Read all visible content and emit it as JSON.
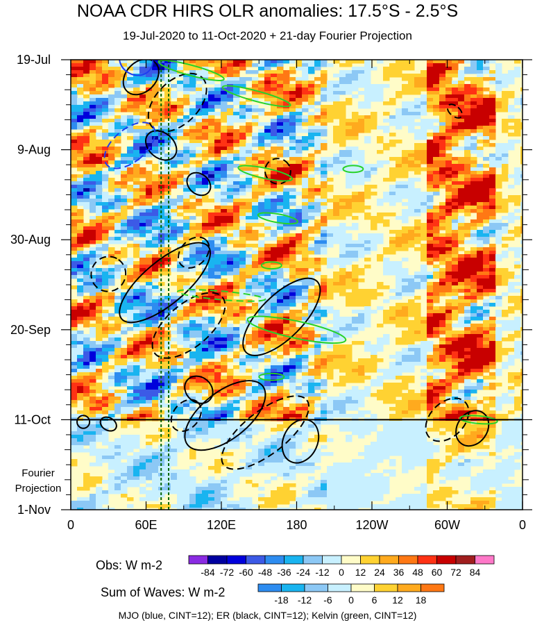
{
  "title": "NOAA CDR HIRS OLR anomalies: 17.5°S - 2.5°S",
  "subtitle": "19-Jul-2020 to 11-Oct-2020 + 21-day Fourier Projection",
  "footer": "MJO (blue, CINT=12); ER (black, CINT=12); Kelvin (green, CINT=12)",
  "colors": {
    "background_field": "#fffcc8",
    "mjo": "#1e3cf0",
    "er": "#000000",
    "kelvin": "#28d228",
    "marker_lines": "#006400"
  },
  "chart_data": {
    "type": "heatmap",
    "xlabel": "",
    "ylabel": "",
    "xlim_deg": [
      0,
      360
    ],
    "x_ticks": [
      {
        "lon": 0,
        "label": "0"
      },
      {
        "lon": 60,
        "label": "60E"
      },
      {
        "lon": 120,
        "label": "120E"
      },
      {
        "lon": 180,
        "label": "180"
      },
      {
        "lon": 240,
        "label": "120W"
      },
      {
        "lon": 300,
        "label": "60W"
      },
      {
        "lon": 360,
        "label": "0"
      }
    ],
    "y_ticks": [
      {
        "day": 0,
        "label": "19-Jul"
      },
      {
        "day": 21,
        "label": "9-Aug"
      },
      {
        "day": 42,
        "label": "30-Aug"
      },
      {
        "day": 63,
        "label": "20-Sep"
      },
      {
        "day": 84,
        "label": "11-Oct"
      },
      {
        "day": 105,
        "label": "1-Nov"
      }
    ],
    "y_range_days": [
      0,
      105
    ],
    "observation_end_day": 84,
    "fourier_projection_label": [
      "Fourier",
      "Projection"
    ],
    "reference_longitudes_deg": [
      72,
      78
    ],
    "colorbar_obs": {
      "label": "Obs: W m-2",
      "levels": [
        "-84",
        "-72",
        "-60",
        "-48",
        "-36",
        "-24",
        "-12",
        "0",
        "12",
        "24",
        "36",
        "48",
        "60",
        "72",
        "84"
      ],
      "colors": [
        "#8a2be2",
        "#0000a0",
        "#0000dc",
        "#3c5ae6",
        "#2d8cf0",
        "#19b4f0",
        "#8cc8f5",
        "#c8f0ff",
        "#fffcc8",
        "#ffd232",
        "#ffaa1e",
        "#ff7814",
        "#ff3214",
        "#c80000",
        "#a01e1e",
        "#ff78c8"
      ]
    },
    "colorbar_waves": {
      "label": "Sum of Waves: W m-2",
      "levels": [
        "-18",
        "-12",
        "-6",
        "0",
        "6",
        "12",
        "18"
      ],
      "colors": [
        "#2d8cf0",
        "#19b4f0",
        "#8cc8f5",
        "#c8f0ff",
        "#fffcc8",
        "#ffd232",
        "#ffaa1e",
        "#ff7814"
      ]
    },
    "wave_contours": {
      "mjo": [
        {
          "lon": 52,
          "day": 0,
          "rx": 12,
          "ry": 4,
          "angle": -60,
          "dashed": false
        },
        {
          "lon": 47,
          "day": 20,
          "rx": 13,
          "ry": 7,
          "angle": 50,
          "dashed": true
        }
      ],
      "er": [
        {
          "lon": 56,
          "day": 4,
          "rx": 16,
          "ry": 3.5,
          "angle": -45,
          "dashed": false
        },
        {
          "lon": 85,
          "day": 10,
          "rx": 28,
          "ry": 5,
          "angle": -45,
          "dashed": true
        },
        {
          "lon": 72,
          "day": 20,
          "rx": 10,
          "ry": 4,
          "angle": -50,
          "dashed": false
        },
        {
          "lon": 102,
          "day": 29,
          "rx": 8,
          "ry": 3,
          "angle": -50,
          "dashed": false
        },
        {
          "lon": 165,
          "day": 26,
          "rx": 10,
          "ry": 3,
          "angle": -55,
          "dashed": true
        },
        {
          "lon": 98,
          "day": 45,
          "rx": 14,
          "ry": 3,
          "angle": -45,
          "dashed": true
        },
        {
          "lon": 30,
          "day": 50,
          "rx": 14,
          "ry": 4,
          "angle": -55,
          "dashed": true
        },
        {
          "lon": 75,
          "day": 52,
          "rx": 45,
          "ry": 5,
          "angle": -40,
          "dashed": false
        },
        {
          "lon": 94,
          "day": 62,
          "rx": 35,
          "ry": 5,
          "angle": -40,
          "dashed": true
        },
        {
          "lon": 168,
          "day": 60,
          "rx": 40,
          "ry": 5,
          "angle": -45,
          "dashed": false
        },
        {
          "lon": 102,
          "day": 77,
          "rx": 10,
          "ry": 3.5,
          "angle": -50,
          "dashed": false
        },
        {
          "lon": 92,
          "day": 83,
          "rx": 14,
          "ry": 3,
          "angle": -50,
          "dashed": true
        },
        {
          "lon": 123,
          "day": 83,
          "rx": 38,
          "ry": 5.5,
          "angle": -38,
          "dashed": false
        },
        {
          "lon": 155,
          "day": 87,
          "rx": 42,
          "ry": 5,
          "angle": -38,
          "dashed": true
        },
        {
          "lon": 183,
          "day": 89,
          "rx": 18,
          "ry": 4,
          "angle": -65,
          "dashed": false
        },
        {
          "lon": 300,
          "day": 84,
          "rx": 20,
          "ry": 4,
          "angle": -45,
          "dashed": true
        },
        {
          "lon": 320,
          "day": 86,
          "rx": 15,
          "ry": 3.5,
          "angle": -55,
          "dashed": false
        },
        {
          "lon": 306,
          "day": 12,
          "rx": 4,
          "ry": 2,
          "angle": -50,
          "dashed": true
        },
        {
          "lon": 10,
          "day": 84.5,
          "rx": 5,
          "ry": 1.5,
          "angle": 0,
          "dashed": false
        },
        {
          "lon": 30,
          "day": 85,
          "rx": 5,
          "ry": 2,
          "angle": -60,
          "dashed": false
        }
      ],
      "kelvin": [
        {
          "lon": 96,
          "day": 2.5,
          "rx": 27,
          "ry": 1.2,
          "angle": 15,
          "dashed": false
        },
        {
          "lon": 148,
          "day": 8.5,
          "rx": 28,
          "ry": 1.2,
          "angle": 15,
          "dashed": false
        },
        {
          "lon": 155,
          "day": 26.5,
          "rx": 22,
          "ry": 1.2,
          "angle": 12,
          "dashed": false
        },
        {
          "lon": 225,
          "day": 25.5,
          "rx": 8,
          "ry": 0.8,
          "angle": 0,
          "dashed": false
        },
        {
          "lon": 165,
          "day": 37,
          "rx": 16,
          "ry": 1,
          "angle": 10,
          "dashed": false
        },
        {
          "lon": 160,
          "day": 48,
          "rx": 8,
          "ry": 0.8,
          "angle": 0,
          "dashed": false
        },
        {
          "lon": 120,
          "day": 55,
          "rx": 35,
          "ry": 1,
          "angle": 5,
          "dashed": true
        },
        {
          "lon": 180,
          "day": 63,
          "rx": 40,
          "ry": 2,
          "angle": 12,
          "dashed": false
        },
        {
          "lon": 160,
          "day": 74,
          "rx": 10,
          "ry": 0.8,
          "angle": 0,
          "dashed": false
        },
        {
          "lon": 325,
          "day": 84,
          "rx": 15,
          "ry": 0.9,
          "angle": 5,
          "dashed": false
        }
      ]
    }
  }
}
